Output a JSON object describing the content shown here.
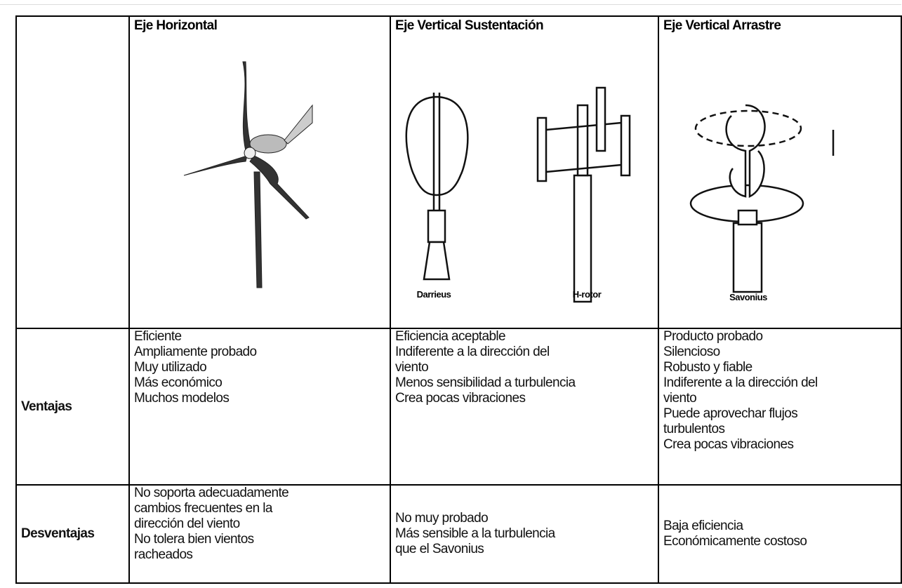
{
  "table": {
    "header": [
      "Eje Horizontal",
      "Eje Vertical Sustentación",
      "Eje Vertical Arrastre"
    ],
    "figure_labels": [
      "Darrieus",
      "H-rotor",
      "Savonius"
    ],
    "rows": [
      {
        "label": "Ventajas",
        "cells": [
          [
            "Eficiente",
            "Ampliamente probado",
            "Muy utilizado",
            "Más económico",
            "Muchos modelos"
          ],
          [
            "Eficiencia aceptable",
            "Indiferente a la dirección del",
            "viento",
            "Menos sensibilidad a turbulencia",
            "Crea pocas vibraciones"
          ],
          [
            "Producto probado",
            "Silencioso",
            "Robusto y fiable",
            "Indiferente a la dirección del",
            "viento",
            "Puede aprovechar flujos",
            "turbulentos",
            "Crea pocas vibraciones"
          ]
        ]
      },
      {
        "label": "Desventajas",
        "cells": [
          [
            "No soporta adecuadamente",
            "cambios frecuentes en la",
            "dirección del viento",
            "No tolera bien vientos",
            "racheados"
          ],
          [
            "No muy probado",
            "Más sensible a la turbulencia",
            "que el Savonius"
          ],
          [
            "Baja eficiencia",
            "Económicamente costoso"
          ]
        ]
      }
    ]
  }
}
